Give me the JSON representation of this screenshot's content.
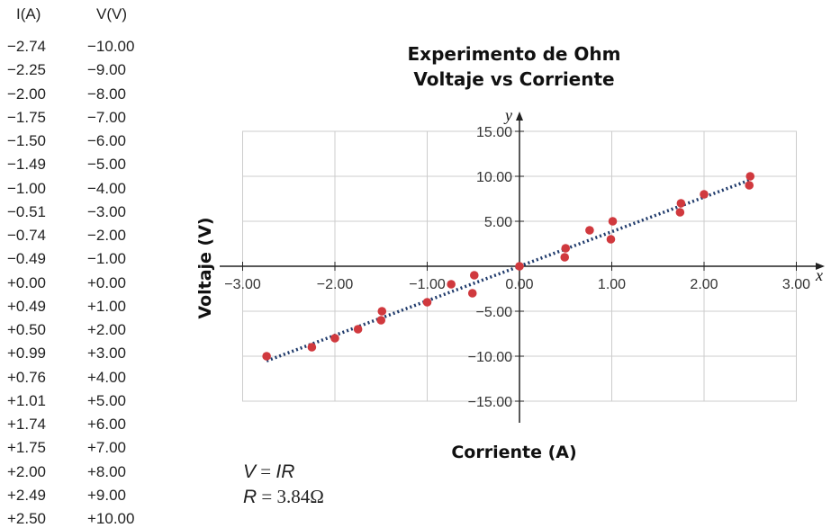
{
  "table": {
    "headers": [
      "I(A)",
      "V(V)"
    ],
    "rows": [
      [
        "−2.74",
        "−10.00"
      ],
      [
        "−2.25",
        "−9.00"
      ],
      [
        "−2.00",
        "−8.00"
      ],
      [
        "−1.75",
        "−7.00"
      ],
      [
        "−1.50",
        "−6.00"
      ],
      [
        "−1.49",
        "−5.00"
      ],
      [
        "−1.00",
        "−4.00"
      ],
      [
        "−0.51",
        "−3.00"
      ],
      [
        "−0.74",
        "−2.00"
      ],
      [
        "−0.49",
        "−1.00"
      ],
      [
        "+0.00",
        "+0.00"
      ],
      [
        "+0.49",
        "+1.00"
      ],
      [
        "+0.50",
        "+2.00"
      ],
      [
        "+0.99",
        "+3.00"
      ],
      [
        "+0.76",
        "+4.00"
      ],
      [
        "+1.01",
        "+5.00"
      ],
      [
        "+1.74",
        "+6.00"
      ],
      [
        "+1.75",
        "+7.00"
      ],
      [
        "+2.00",
        "+8.00"
      ],
      [
        "+2.49",
        "+9.00"
      ],
      [
        "+2.50",
        "+10.00"
      ]
    ]
  },
  "chart_data": {
    "type": "scatter",
    "title": [
      "Experimento de Ohm",
      "Voltaje vs Corriente"
    ],
    "xlabel": "Corriente (A)",
    "ylabel": "Voltaje (V)",
    "x_axis_symbol": "x",
    "y_axis_symbol": "y",
    "xlim": [
      -3.0,
      3.0
    ],
    "ylim": [
      -15.0,
      15.0
    ],
    "x_ticks": [
      -3.0,
      -2.0,
      -1.0,
      0.0,
      1.0,
      2.0,
      3.0
    ],
    "y_ticks": [
      -15.0,
      -10.0,
      -5.0,
      5.0,
      10.0,
      15.0
    ],
    "x_tick_labels": [
      "−3.00",
      "−2.00",
      "−1.00",
      "0.00",
      "1.00",
      "2.00",
      "3.00"
    ],
    "y_tick_labels": [
      "−15.00",
      "−10.00",
      "−5.00",
      "5.00",
      "10.00",
      "15.00"
    ],
    "grid": true,
    "points": {
      "x": [
        -2.74,
        -2.25,
        -2.0,
        -1.75,
        -1.5,
        -1.49,
        -1.0,
        -0.51,
        -0.74,
        -0.49,
        0.0,
        0.49,
        0.5,
        0.99,
        0.76,
        1.01,
        1.74,
        1.75,
        2.0,
        2.49,
        2.5
      ],
      "y": [
        -10.0,
        -9.0,
        -8.0,
        -7.0,
        -6.0,
        -5.0,
        -4.0,
        -3.0,
        -2.0,
        -1.0,
        0.0,
        1.0,
        2.0,
        3.0,
        4.0,
        5.0,
        6.0,
        7.0,
        8.0,
        9.0,
        10.0
      ]
    },
    "fit_line": {
      "x": [
        -2.74,
        2.5
      ],
      "slope": 3.84,
      "intercept": 0.0
    },
    "colors": {
      "points": "#d0393e",
      "fit_line": "#1f3a6b",
      "grid": "#cccccc",
      "axes": "#222222"
    }
  },
  "formula": {
    "line1_lhs": "V",
    "line1_rhs": "IR",
    "line2_lhs": "R",
    "line2_rhs": "3.84Ω"
  }
}
